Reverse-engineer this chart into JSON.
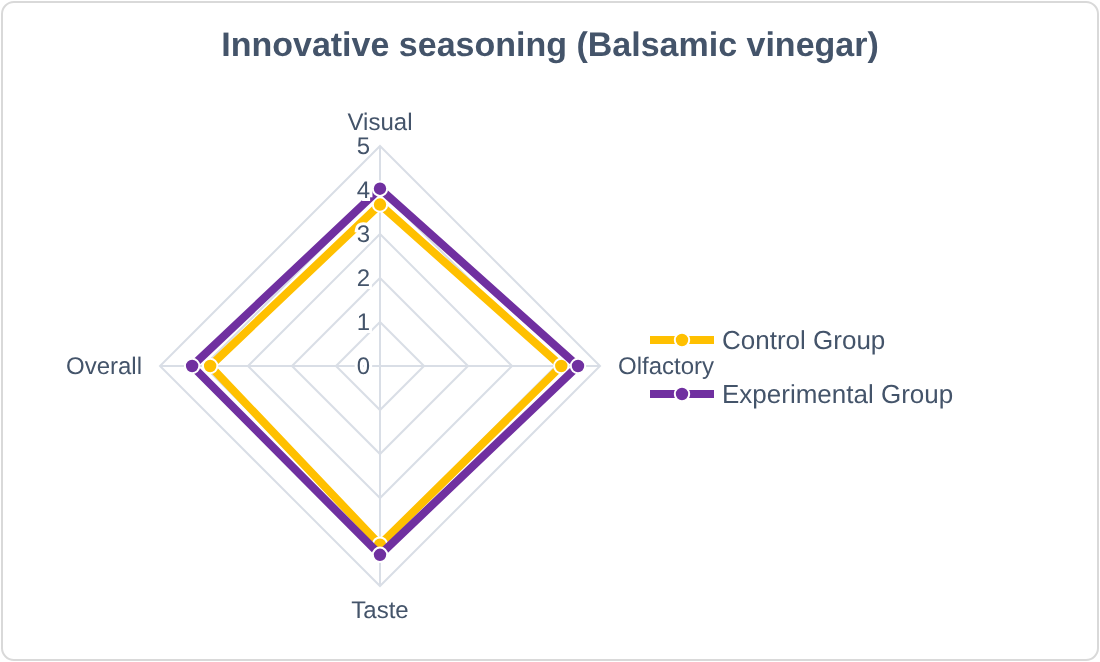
{
  "chart_data": {
    "type": "radar",
    "title": "Innovative seasoning (Balsamic vinegar)",
    "categories": [
      "Visual",
      "Olfactory",
      "Taste",
      "Overall"
    ],
    "series": [
      {
        "name": "Control Group",
        "color": "#ffc000",
        "values": [
          3.67,
          4.12,
          4.06,
          3.86
        ]
      },
      {
        "name": "Experimental Group",
        "color": "#7030a0",
        "values": [
          4.03,
          4.5,
          4.29,
          4.27
        ]
      }
    ],
    "ylim": [
      0,
      5
    ],
    "yticks": [
      0,
      1,
      2,
      3,
      4,
      5
    ],
    "grid": true,
    "legend": "right",
    "marker": "circle"
  }
}
